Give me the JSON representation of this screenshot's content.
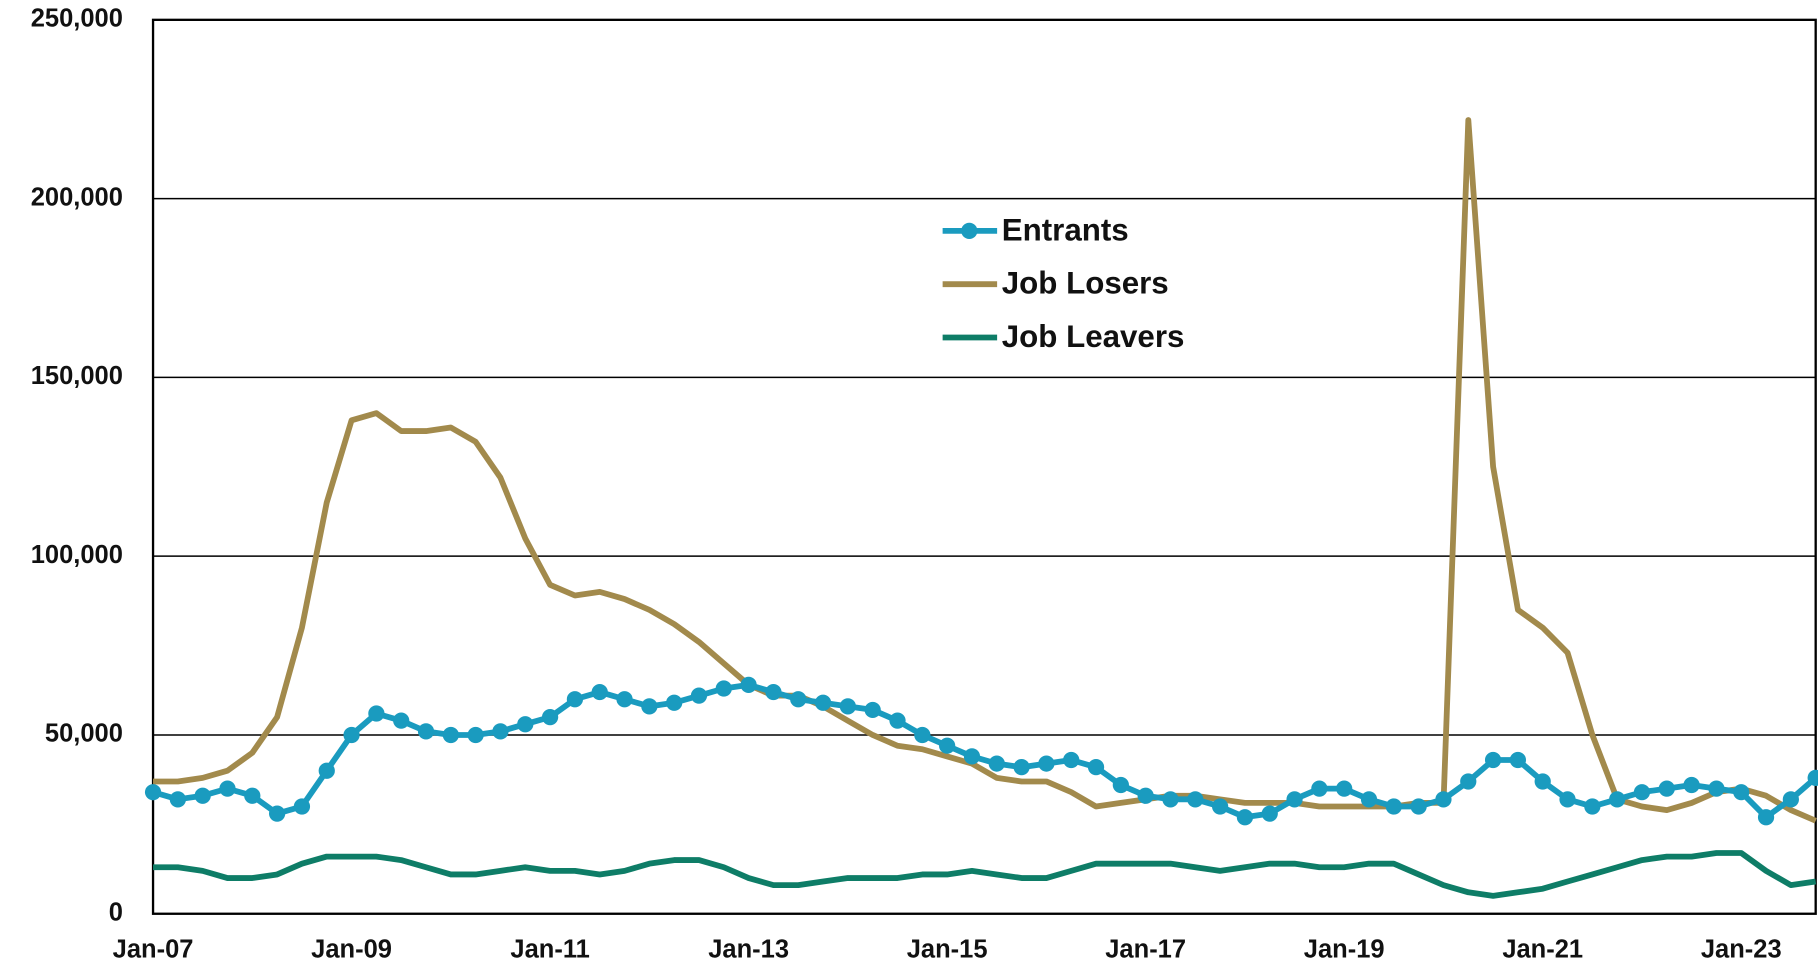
{
  "chart_data": {
    "type": "line",
    "categories": [
      "Jan-07",
      null,
      null,
      null,
      null,
      null,
      null,
      null,
      "Jan-09",
      null,
      null,
      null,
      null,
      null,
      null,
      null,
      "Jan-11",
      null,
      null,
      null,
      null,
      null,
      null,
      null,
      "Jan-13",
      null,
      null,
      null,
      null,
      null,
      null,
      null,
      "Jan-15",
      null,
      null,
      null,
      null,
      null,
      null,
      null,
      "Jan-17",
      null,
      null,
      null,
      null,
      null,
      null,
      null,
      "Jan-19",
      null,
      null,
      null,
      null,
      null,
      null,
      null,
      "Jan-21",
      null,
      null,
      null,
      null,
      null,
      null,
      null,
      "Jan-23",
      null,
      null,
      null
    ],
    "series": [
      {
        "name": "Entrants",
        "color": "#1a9bbf",
        "markers": true,
        "values": [
          34000,
          32000,
          33000,
          35000,
          33000,
          28000,
          30000,
          40000,
          50000,
          56000,
          54000,
          51000,
          50000,
          50000,
          51000,
          53000,
          55000,
          60000,
          62000,
          60000,
          58000,
          59000,
          61000,
          63000,
          64000,
          62000,
          60000,
          59000,
          58000,
          57000,
          54000,
          50000,
          47000,
          44000,
          42000,
          41000,
          42000,
          43000,
          41000,
          36000,
          33000,
          32000,
          32000,
          30000,
          27000,
          28000,
          32000,
          35000,
          35000,
          32000,
          30000,
          30000,
          32000,
          37000,
          43000,
          43000,
          37000,
          32000,
          30000,
          32000,
          34000,
          35000,
          36000,
          35000,
          34000,
          27000,
          32000,
          38000
        ]
      },
      {
        "name": "Job Losers",
        "color": "#a28a4c",
        "markers": false,
        "values": [
          37000,
          37000,
          38000,
          40000,
          45000,
          55000,
          80000,
          115000,
          138000,
          140000,
          135000,
          135000,
          136000,
          132000,
          122000,
          105000,
          92000,
          89000,
          90000,
          88000,
          85000,
          81000,
          76000,
          70000,
          64000,
          61000,
          61000,
          58000,
          54000,
          50000,
          47000,
          46000,
          44000,
          42000,
          38000,
          37000,
          37000,
          34000,
          30000,
          31000,
          32000,
          33000,
          33000,
          32000,
          31000,
          31000,
          31000,
          30000,
          30000,
          30000,
          30000,
          31000,
          31000,
          222000,
          125000,
          85000,
          80000,
          73000,
          50000,
          32000,
          30000,
          29000,
          31000,
          34000,
          35000,
          33000,
          29000,
          26000
        ]
      },
      {
        "name": "Job Leavers",
        "color": "#0e7d67",
        "markers": false,
        "values": [
          13000,
          13000,
          12000,
          10000,
          10000,
          11000,
          14000,
          16000,
          16000,
          16000,
          15000,
          13000,
          11000,
          11000,
          12000,
          13000,
          12000,
          12000,
          11000,
          12000,
          14000,
          15000,
          15000,
          13000,
          10000,
          8000,
          8000,
          9000,
          10000,
          10000,
          10000,
          11000,
          11000,
          12000,
          11000,
          10000,
          10000,
          12000,
          14000,
          14000,
          14000,
          14000,
          13000,
          12000,
          13000,
          14000,
          14000,
          13000,
          13000,
          14000,
          14000,
          11000,
          8000,
          6000,
          5000,
          6000,
          7000,
          9000,
          11000,
          13000,
          15000,
          16000,
          16000,
          17000,
          17000,
          12000,
          8000,
          9000
        ]
      }
    ],
    "ylim": [
      0,
      250000
    ],
    "yticks": [
      0,
      {
        "value": 50000,
        "label": "50,000"
      },
      {
        "value": 100000,
        "label": "100,000"
      },
      {
        "value": 150000,
        "label": "150,000"
      },
      {
        "value": 200000,
        "label": "200,000"
      },
      {
        "value": 250000,
        "label": "250,000"
      }
    ],
    "grid": true
  }
}
